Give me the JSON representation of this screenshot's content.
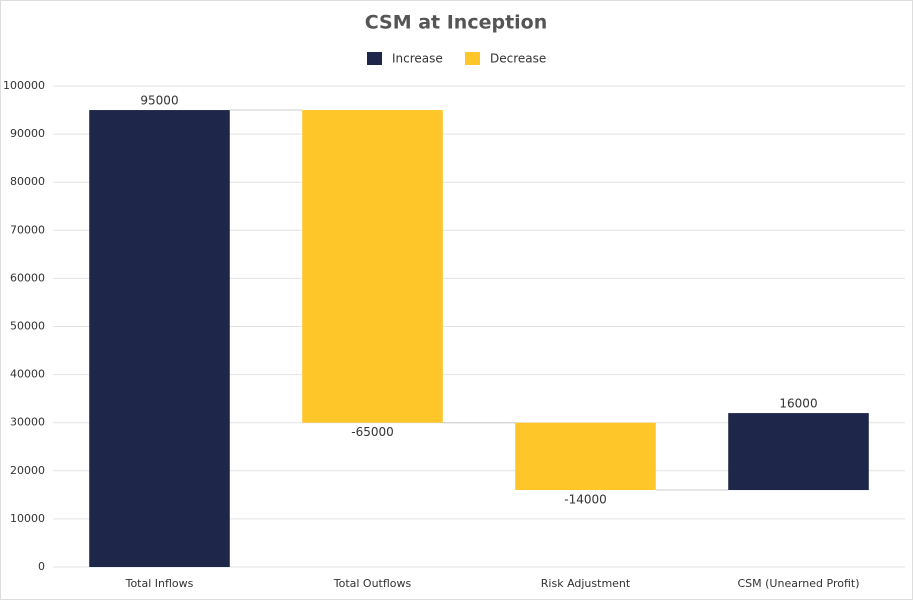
{
  "chart_data": {
    "type": "waterfall",
    "title": "CSM at Inception",
    "categories": [
      "Total Inflows",
      "Total Outflows",
      "Risk Adjustment",
      "CSM (Unearned Profit)"
    ],
    "values": [
      95000,
      -65000,
      -14000,
      16000
    ],
    "legend": [
      {
        "name": "Increase",
        "color": "#1e2749"
      },
      {
        "name": "Decrease",
        "color": "#ffc629"
      }
    ],
    "ylim": [
      0,
      100000
    ],
    "yticks": [
      0,
      10000,
      20000,
      30000,
      40000,
      50000,
      60000,
      70000,
      80000,
      90000,
      100000
    ],
    "grid": true
  }
}
